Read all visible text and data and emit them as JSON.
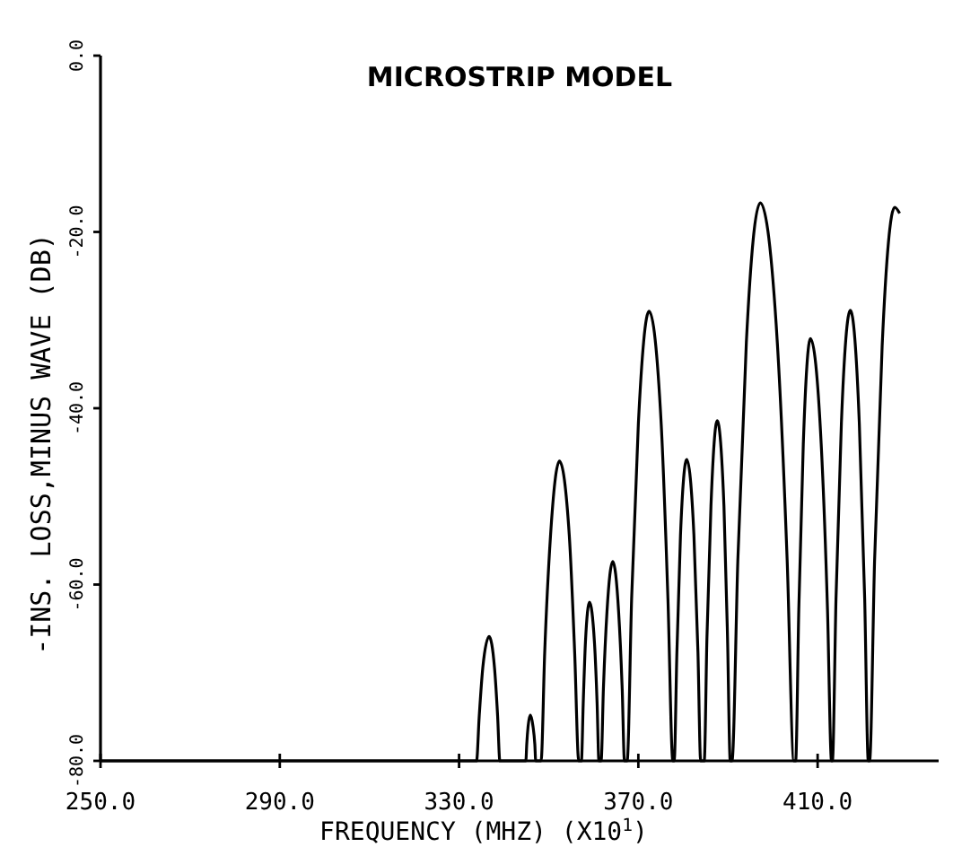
{
  "chart_data": {
    "type": "line",
    "title": "MICROSTRIP MODEL",
    "xlabel": "FREQUENCY (MHZ) (X10$^{1}$)",
    "ylabel": "-INS. LOSS,MINUS WAVE (DB)",
    "xlim": [
      250,
      437
    ],
    "ylim": [
      -80,
      0
    ],
    "xticks": [
      {
        "value": 250,
        "label": "250.0"
      },
      {
        "value": 290,
        "label": "290.0"
      },
      {
        "value": 330,
        "label": "330.0"
      },
      {
        "value": 370,
        "label": "370.0"
      },
      {
        "value": 410,
        "label": "410.0"
      }
    ],
    "yticks": [
      {
        "value": -80,
        "label": "-80.0"
      },
      {
        "value": -60,
        "label": "-60.0"
      },
      {
        "value": -40,
        "label": "-40.0"
      },
      {
        "value": -20,
        "label": "-20.0"
      },
      {
        "value": 0,
        "label": "0.0"
      }
    ],
    "grid": false,
    "marker": "none",
    "line_style": "solid",
    "series": [
      {
        "color": "#000000",
        "x": [
          250,
          333.9,
          334.5,
          335.3,
          336.7,
          337.9,
          338.6,
          339.1,
          344.9,
          345.1,
          345.4,
          345.9,
          346.5,
          346.9,
          347.1,
          348.3,
          349.1,
          350.4,
          352.4,
          354.6,
          355.8,
          356.7,
          357.3,
          357.7,
          358.2,
          359.1,
          360.2,
          360.8,
          361.2,
          361.7,
          362.2,
          363.0,
          364.3,
          365.6,
          366.4,
          366.9,
          367.5,
          368.5,
          370.0,
          372.4,
          375.1,
          376.6,
          377.7,
          378.0,
          378.6,
          379.4,
          380.8,
          382.4,
          383.3,
          383.9,
          384.7,
          385.3,
          386.2,
          387.6,
          389.1,
          389.9,
          390.5,
          390.9,
          392.2,
          394.1,
          397.2,
          401.0,
          403.2,
          404.7,
          405.1,
          405.8,
          406.8,
          408.4,
          410.8,
          412.2,
          413.1,
          413.3,
          414.1,
          415.3,
          417.3,
          419.3,
          420.5,
          421.3,
          421.6,
          422.7,
          424.4,
          427.2,
          428.3
        ],
        "values": [
          -80,
          -80,
          -74.9,
          -69.4,
          -65.9,
          -69.4,
          -74.9,
          -80,
          -80,
          -78.1,
          -76.1,
          -74.8,
          -76.1,
          -78.1,
          -80,
          -80,
          -67.8,
          -54.5,
          -46.0,
          -54.5,
          -67.8,
          -80,
          -80,
          -73.5,
          -66.5,
          -62.0,
          -66.5,
          -73.5,
          -80,
          -80,
          -71.9,
          -63.1,
          -57.4,
          -63.1,
          -71.9,
          -80,
          -80,
          -61.6,
          -41.8,
          -29.0,
          -41.8,
          -61.6,
          -80,
          -80,
          -67.7,
          -54.4,
          -45.8,
          -54.4,
          -67.7,
          -80,
          -80,
          -66.1,
          -51.1,
          -41.4,
          -51.1,
          -66.1,
          -80,
          -80,
          -57.2,
          -32.5,
          -16.7,
          -32.5,
          -57.2,
          -80,
          -80,
          -62.8,
          -44.1,
          -32.1,
          -44.1,
          -62.8,
          -80,
          -80,
          -61.6,
          -41.7,
          -28.9,
          -41.7,
          -61.6,
          -80,
          -80,
          -57.4,
          -32.9,
          -17.2,
          -17.9
        ]
      }
    ]
  }
}
